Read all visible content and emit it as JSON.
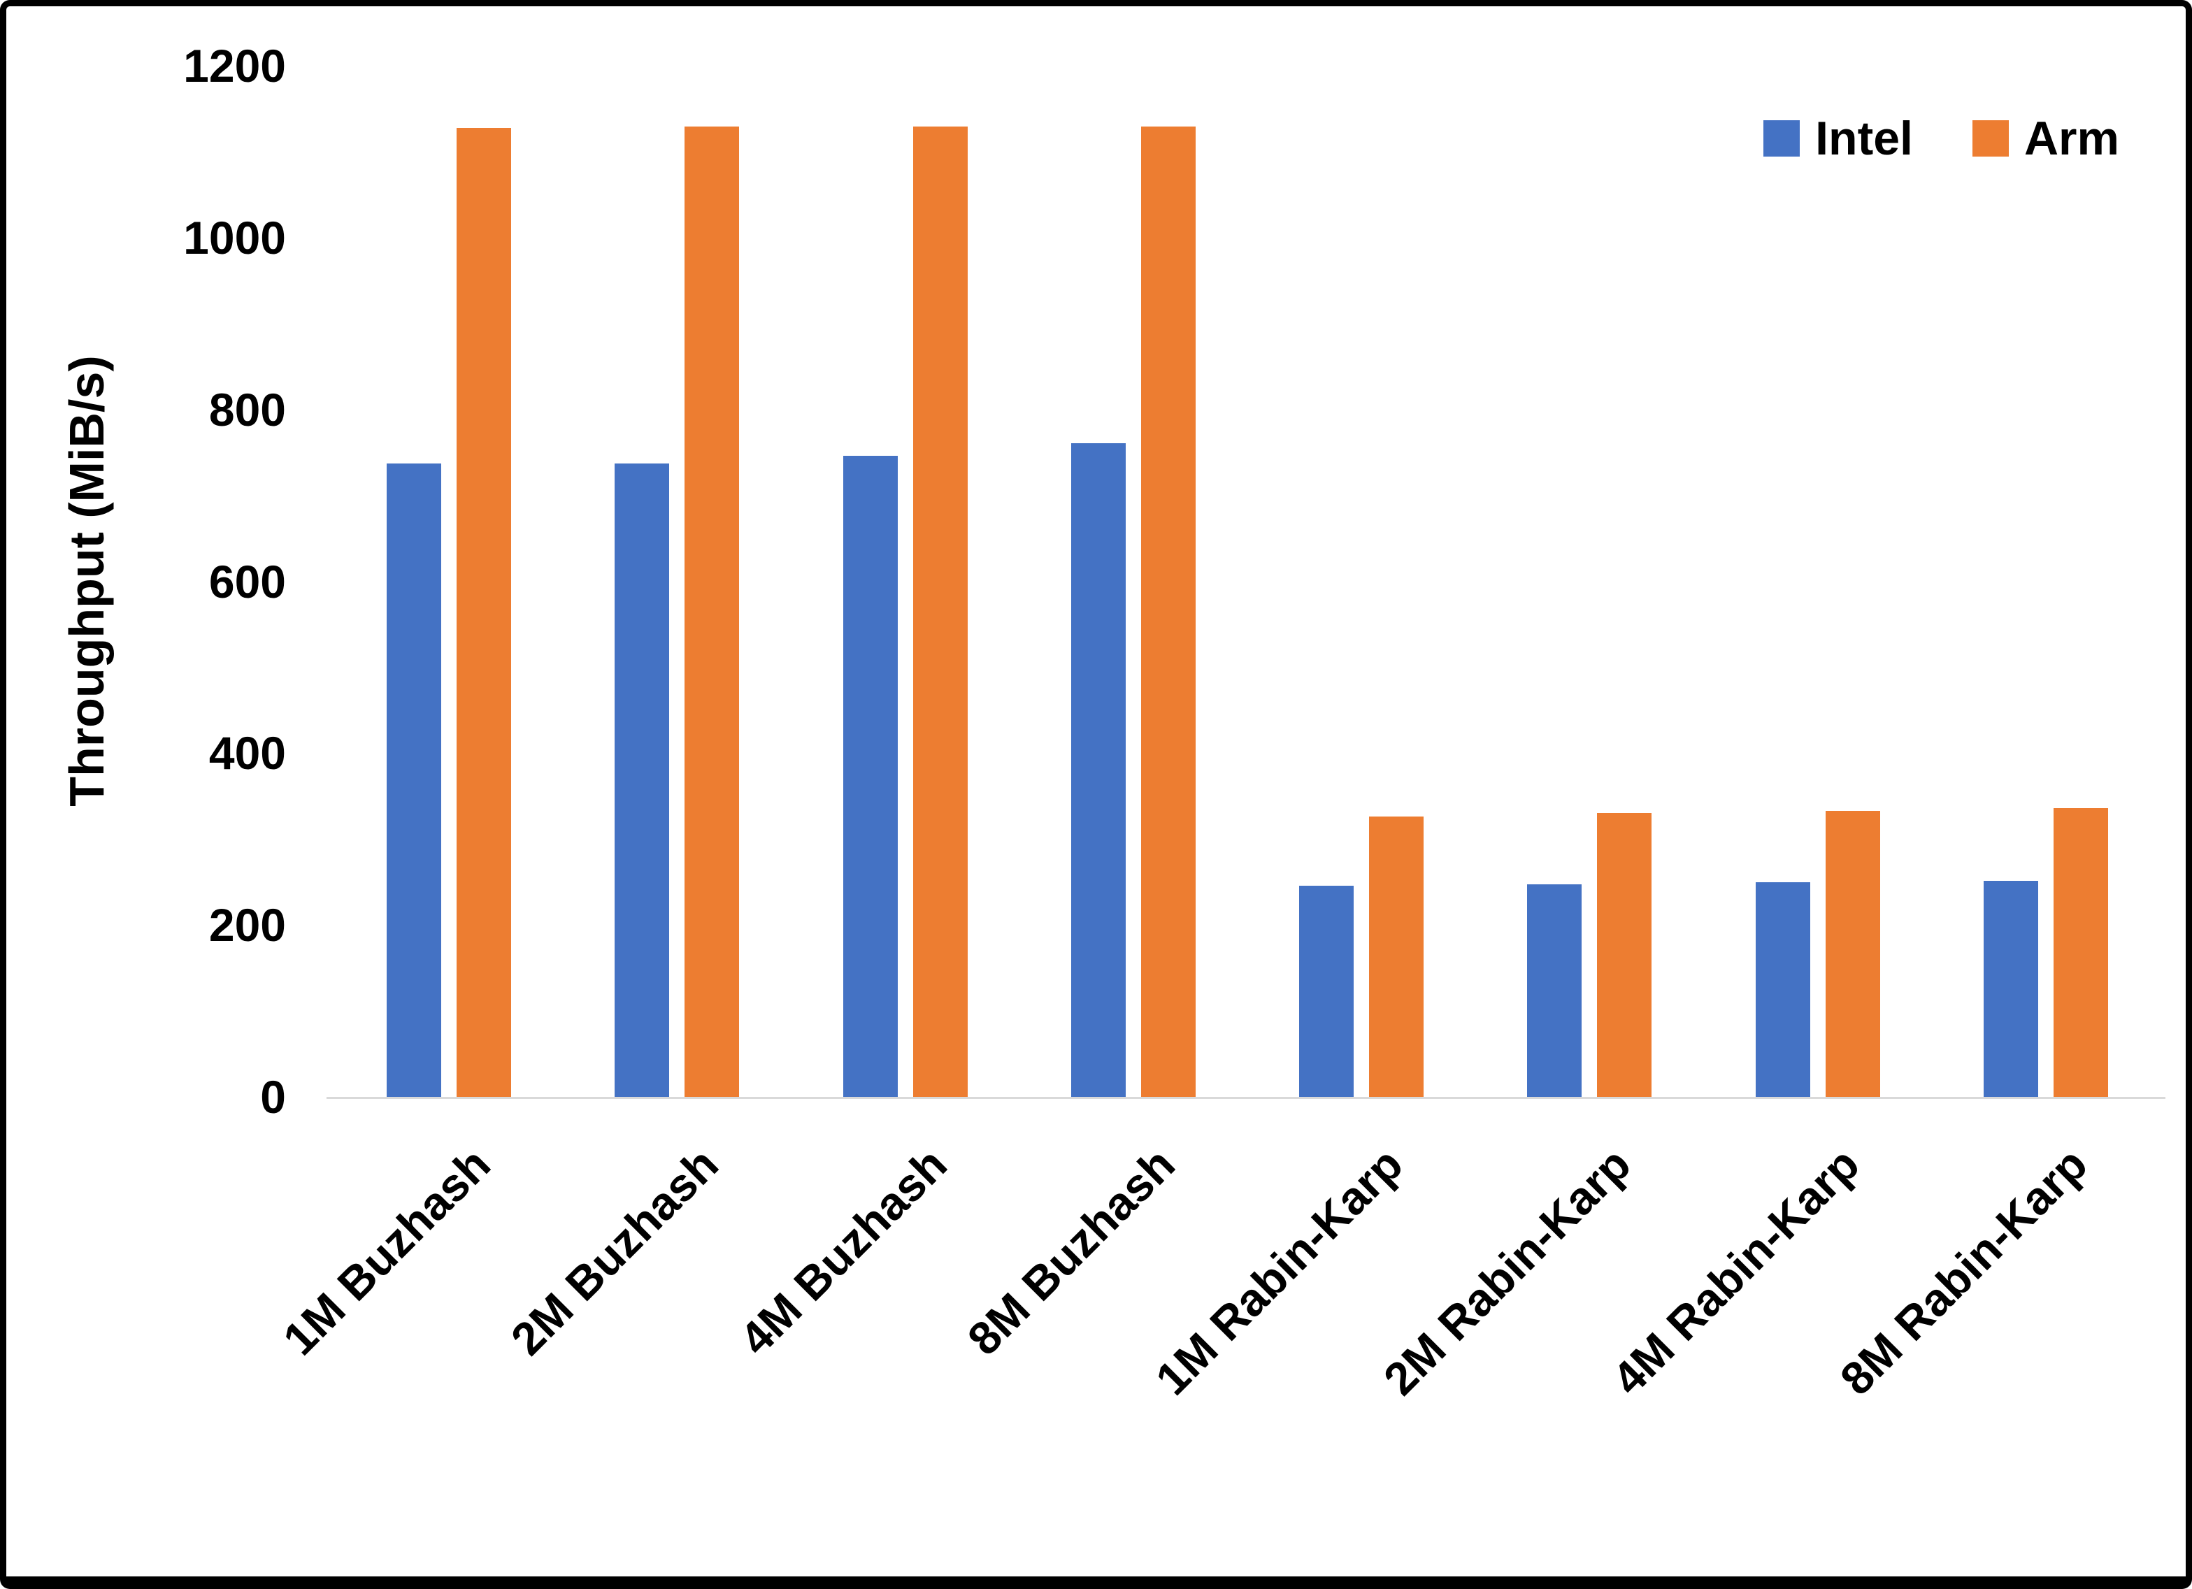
{
  "chart_data": {
    "type": "bar",
    "title": "",
    "xlabel": "",
    "ylabel": "Throughput (MiB/s)",
    "ylim": [
      0,
      1200
    ],
    "yticks": [
      0,
      200,
      400,
      600,
      800,
      1000,
      1200
    ],
    "grid": false,
    "legend_position": "top-right",
    "categories": [
      "1M Buzhash",
      "2M Buzhash",
      "4M Buzhash",
      "8M Buzhash",
      "1M Rabin-Karp",
      "2M Rabin-Karp",
      "4M Rabin-Karp",
      "8M Rabin-Karp"
    ],
    "series": [
      {
        "name": "Intel",
        "color": "#4472C4",
        "values": [
          737,
          737,
          746,
          761,
          246,
          247,
          250,
          251
        ]
      },
      {
        "name": "Arm",
        "color": "#ED7D31",
        "values": [
          1128,
          1129,
          1129,
          1129,
          326,
          330,
          333,
          336
        ]
      }
    ]
  }
}
